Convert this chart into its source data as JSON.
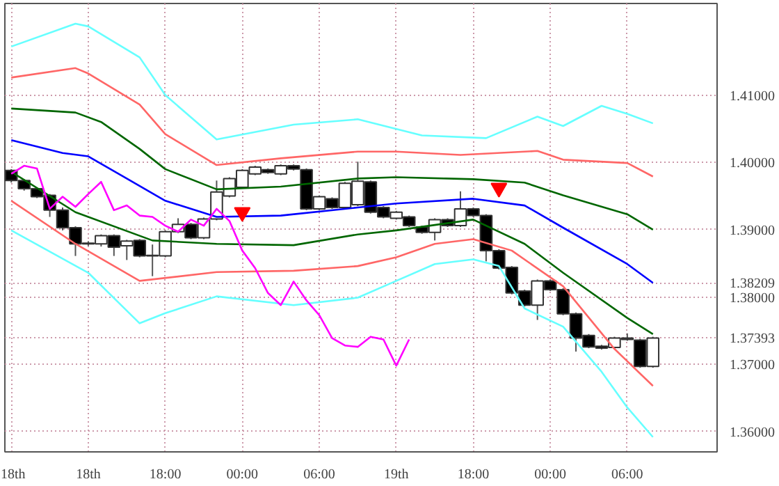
{
  "chart_data": {
    "type": "candlestick",
    "categories": [
      "18th",
      null,
      null,
      null,
      null,
      null,
      "18th",
      null,
      null,
      null,
      null,
      null,
      "18:00",
      null,
      null,
      null,
      null,
      null,
      "00:00",
      null,
      null,
      null,
      null,
      null,
      "06:00",
      null,
      null,
      null,
      null,
      null,
      "19th",
      null,
      null,
      null,
      null,
      null,
      "18:00",
      null,
      null,
      null,
      null,
      null,
      "00:00",
      null,
      null,
      null,
      null,
      null,
      "06:00",
      null,
      null
    ],
    "ohlc": [
      [
        1.3988,
        1.399,
        1.397,
        1.3973
      ],
      [
        1.3973,
        1.3975,
        1.3958,
        1.3961
      ],
      [
        1.3961,
        1.3963,
        1.3947,
        1.3949
      ],
      [
        1.3951,
        1.3953,
        1.3919,
        1.3929
      ],
      [
        1.3929,
        1.3933,
        1.3899,
        1.3903
      ],
      [
        1.3903,
        1.3905,
        1.3861,
        1.3879
      ],
      [
        1.3879,
        1.3883,
        1.3876,
        1.388
      ],
      [
        1.3879,
        1.3893,
        1.3875,
        1.3891
      ],
      [
        1.3891,
        1.3893,
        1.3861,
        1.3874
      ],
      [
        1.3876,
        1.3885,
        1.3855,
        1.3883
      ],
      [
        1.3884,
        1.3886,
        1.3859,
        1.3861
      ],
      [
        1.3861,
        1.3878,
        1.3831,
        1.3862
      ],
      [
        1.3861,
        1.3899,
        1.3859,
        1.3897
      ],
      [
        1.3897,
        1.3917,
        1.3895,
        1.3908
      ],
      [
        1.3908,
        1.391,
        1.3886,
        1.3888
      ],
      [
        1.3888,
        1.3918,
        1.3886,
        1.3916
      ],
      [
        1.3916,
        1.3973,
        1.3914,
        1.3956
      ],
      [
        1.395,
        1.3978,
        1.3948,
        1.3976
      ],
      [
        1.3963,
        1.399,
        1.3961,
        1.3988
      ],
      [
        1.3983,
        1.3995,
        1.3981,
        1.3993
      ],
      [
        1.3989,
        1.3991,
        1.3983,
        1.3985
      ],
      [
        1.3983,
        1.3997,
        1.3981,
        1.3995
      ],
      [
        1.3995,
        1.3997,
        1.3988,
        1.399
      ],
      [
        1.3989,
        1.3991,
        1.3929,
        1.3931
      ],
      [
        1.3931,
        1.3951,
        1.3929,
        1.3949
      ],
      [
        1.3946,
        1.3948,
        1.3931,
        1.3933
      ],
      [
        1.3933,
        1.3971,
        1.3931,
        1.3969
      ],
      [
        1.3937,
        1.4001,
        1.3935,
        1.3972
      ],
      [
        1.3971,
        1.3973,
        1.3924,
        1.3926
      ],
      [
        1.3933,
        1.3935,
        1.3917,
        1.3919
      ],
      [
        1.3917,
        1.3928,
        1.3915,
        1.3926
      ],
      [
        1.3919,
        1.3921,
        1.3904,
        1.3906
      ],
      [
        1.3904,
        1.3906,
        1.3894,
        1.3896
      ],
      [
        1.3896,
        1.3917,
        1.3884,
        1.3915
      ],
      [
        1.3915,
        1.3917,
        1.3904,
        1.3906
      ],
      [
        1.3906,
        1.3957,
        1.3904,
        1.3931
      ],
      [
        1.3931,
        1.3933,
        1.3919,
        1.3921
      ],
      [
        1.3921,
        1.3923,
        1.3853,
        1.3869
      ],
      [
        1.3869,
        1.3871,
        1.3841,
        1.3843
      ],
      [
        1.3844,
        1.3846,
        1.3804,
        1.3806
      ],
      [
        1.3809,
        1.3811,
        1.3786,
        1.3788
      ],
      [
        1.3788,
        1.3826,
        1.3766,
        1.3824
      ],
      [
        1.3824,
        1.3826,
        1.3809,
        1.3811
      ],
      [
        1.3811,
        1.3813,
        1.3773,
        1.3775
      ],
      [
        1.3775,
        1.3777,
        1.3719,
        1.3739
      ],
      [
        1.3743,
        1.3745,
        1.3724,
        1.3726
      ],
      [
        1.3727,
        1.3729,
        1.3722,
        1.3724
      ],
      [
        1.3725,
        1.3741,
        1.3723,
        1.3739
      ],
      [
        1.3739,
        1.3746,
        1.3735,
        1.3737
      ],
      [
        1.3736,
        1.3738,
        1.3695,
        1.3697
      ],
      [
        1.3697,
        1.3741,
        1.3695,
        1.3739
      ]
    ],
    "series": [
      {
        "type": "line",
        "color": "#66ffff",
        "values": [
          1.4172,
          null,
          null,
          null,
          null,
          1.4206,
          1.4202,
          null,
          null,
          null,
          1.4156,
          null,
          1.41,
          null,
          null,
          null,
          1.4034,
          null,
          null,
          null,
          null,
          null,
          1.4056,
          null,
          null,
          null,
          null,
          1.4064,
          null,
          null,
          null,
          null,
          1.404,
          null,
          null,
          null,
          null,
          1.4036,
          null,
          null,
          null,
          1.4068,
          null,
          1.4054,
          null,
          null,
          1.4084,
          null,
          1.4072,
          null,
          1.4058
        ]
      },
      {
        "type": "line",
        "color": "#ff6666",
        "values": [
          1.4126,
          null,
          null,
          null,
          null,
          1.414,
          1.4132,
          null,
          null,
          null,
          1.4086,
          null,
          1.4042,
          null,
          null,
          null,
          1.3996,
          null,
          null,
          null,
          null,
          1.4006,
          null,
          null,
          null,
          null,
          null,
          1.4016,
          null,
          null,
          1.4016,
          null,
          null,
          null,
          null,
          1.4011,
          null,
          null,
          null,
          null,
          null,
          1.4017,
          null,
          1.4004,
          null,
          null,
          null,
          null,
          1.3999,
          null,
          1.3979
        ]
      },
      {
        "type": "line",
        "color": "#006600",
        "values": [
          1.408,
          null,
          null,
          null,
          null,
          1.4074,
          null,
          1.406,
          null,
          null,
          1.402,
          null,
          1.399,
          null,
          null,
          null,
          1.396,
          null,
          null,
          null,
          null,
          1.3964,
          null,
          null,
          null,
          null,
          null,
          1.3976,
          null,
          null,
          1.3978,
          null,
          null,
          null,
          null,
          null,
          1.3975,
          null,
          null,
          null,
          1.397,
          null,
          null,
          1.3951,
          null,
          null,
          null,
          null,
          1.3923,
          null,
          1.39
        ]
      },
      {
        "type": "line",
        "color": "#0000ff",
        "values": [
          1.4033,
          null,
          null,
          null,
          1.4014,
          null,
          1.4009,
          null,
          null,
          null,
          null,
          null,
          1.3943,
          null,
          null,
          null,
          1.3919,
          null,
          null,
          null,
          null,
          1.3921,
          null,
          null,
          null,
          null,
          null,
          1.3933,
          null,
          null,
          1.3939,
          null,
          null,
          null,
          null,
          null,
          1.3946,
          null,
          null,
          null,
          1.3936,
          null,
          null,
          1.3903,
          null,
          null,
          null,
          null,
          1.3849,
          null,
          1.3821
        ]
      },
      {
        "type": "line",
        "color": "#006600",
        "values": [
          1.3986,
          null,
          null,
          null,
          null,
          1.3926,
          null,
          null,
          null,
          null,
          null,
          1.3884,
          null,
          null,
          null,
          null,
          1.3879,
          null,
          null,
          null,
          null,
          null,
          1.3877,
          null,
          null,
          null,
          null,
          1.3893,
          null,
          null,
          1.3899,
          null,
          null,
          null,
          null,
          null,
          1.3915,
          null,
          null,
          null,
          1.3879,
          null,
          null,
          1.3836,
          null,
          null,
          null,
          null,
          1.3769,
          null,
          1.3745
        ]
      },
      {
        "type": "line",
        "color": "#ff6666",
        "values": [
          1.3943,
          null,
          null,
          null,
          null,
          1.3879,
          null,
          null,
          null,
          null,
          1.3824,
          null,
          null,
          null,
          null,
          null,
          1.3837,
          null,
          null,
          null,
          null,
          null,
          1.3839,
          null,
          null,
          null,
          null,
          1.3846,
          null,
          null,
          1.3859,
          null,
          null,
          1.3879,
          null,
          null,
          1.3886,
          null,
          null,
          1.3869,
          null,
          null,
          null,
          1.3816,
          null,
          null,
          null,
          1.3723,
          null,
          null,
          1.3668
        ]
      },
      {
        "type": "line",
        "color": "#66ffff",
        "values": [
          1.3899,
          null,
          null,
          null,
          null,
          null,
          1.3836,
          null,
          null,
          null,
          1.3761,
          null,
          1.3776,
          null,
          null,
          null,
          1.3801,
          null,
          null,
          null,
          null,
          null,
          1.3788,
          null,
          null,
          null,
          null,
          1.3799,
          null,
          null,
          1.3824,
          null,
          null,
          1.3849,
          null,
          null,
          1.3856,
          null,
          1.3846,
          null,
          1.3783,
          null,
          null,
          1.3756,
          null,
          null,
          1.3689,
          null,
          1.3636,
          null,
          1.3592
        ]
      },
      {
        "type": "line",
        "color": "#ff00ff",
        "values": [
          1.3983,
          1.3995,
          1.3991,
          1.3931,
          1.3949,
          1.3934,
          1.3953,
          1.3971,
          1.3929,
          1.3936,
          1.3921,
          1.3919,
          1.3906,
          1.3897,
          1.3915,
          1.3906,
          1.3931,
          1.3913,
          1.3869,
          1.3843,
          1.3806,
          1.3788,
          1.3823,
          1.3795,
          1.3773,
          1.3739,
          1.3728,
          1.3726,
          1.3741,
          1.3737,
          1.3698,
          1.3737,
          null,
          null,
          null,
          null,
          null,
          null,
          null,
          null,
          null,
          null,
          null,
          null,
          null,
          null,
          null,
          null,
          null,
          null,
          null
        ]
      },
      {
        "type": "scatter",
        "color": "#ff0000",
        "marker": "triangle",
        "values": [
          null,
          null,
          null,
          null,
          null,
          null,
          null,
          null,
          null,
          null,
          null,
          null,
          null,
          null,
          null,
          null,
          null,
          null,
          1.3926,
          null,
          null,
          null,
          null,
          null,
          null,
          null,
          null,
          null,
          null,
          null,
          null,
          null,
          null,
          null,
          null,
          null,
          null,
          null,
          1.3962,
          null,
          null,
          null,
          null,
          null,
          null,
          null,
          null,
          null,
          null,
          null,
          null
        ]
      }
    ],
    "ylim": [
      1.357,
      1.4236
    ],
    "yticks": [
      {
        "value": 1.36,
        "label": "1.36000"
      },
      {
        "value": 1.37,
        "label": "1.37000"
      },
      {
        "value": 1.37393,
        "label": "1.37393"
      },
      {
        "value": 1.38,
        "label": "1.38000"
      },
      {
        "value": 1.38209,
        "label": "1.38209"
      },
      {
        "value": 1.39,
        "label": "1.39000"
      },
      {
        "value": 1.4,
        "label": "1.40000"
      },
      {
        "value": 1.41,
        "label": "1.41000"
      }
    ],
    "grid": true
  }
}
